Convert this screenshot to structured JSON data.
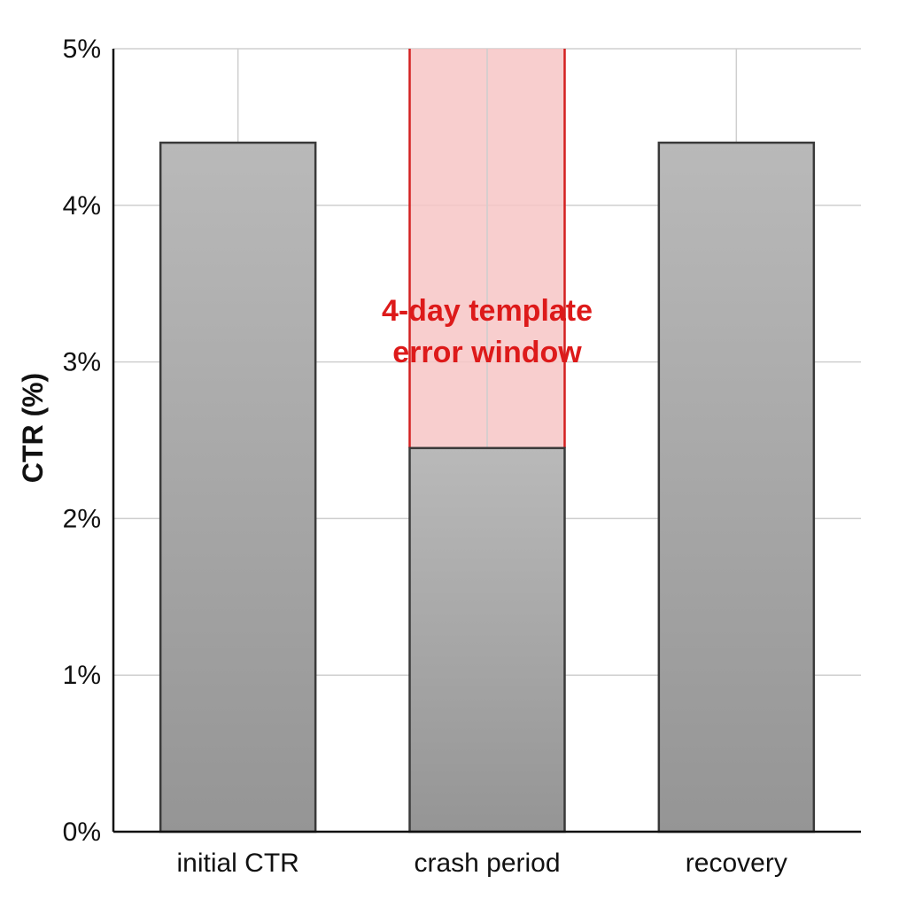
{
  "chart_data": {
    "type": "bar",
    "ylabel": "CTR (%)",
    "xlabel": "",
    "ylim": [
      0,
      5
    ],
    "yticks": [
      "0%",
      "1%",
      "2%",
      "3%",
      "4%",
      "5%"
    ],
    "ytick_values": [
      0,
      1,
      2,
      3,
      4,
      5
    ],
    "categories": [
      "initial CTR",
      "crash period",
      "recovery"
    ],
    "values": [
      4.4,
      2.45,
      4.4
    ],
    "grid": true,
    "bar_color": "#a8a8a8",
    "highlight": {
      "category": "crash period",
      "from": 2.45,
      "to": 5,
      "color": "#f7c6c6",
      "edge_color": "#d42020",
      "label_lines": [
        "4-day template",
        "error window"
      ]
    }
  }
}
